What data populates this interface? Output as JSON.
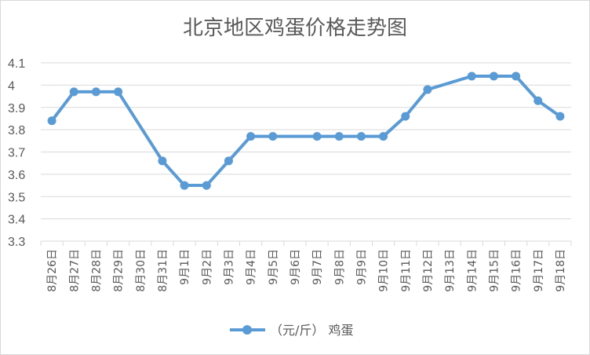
{
  "chart_data": {
    "type": "line",
    "title": "北京地区鸡蛋价格走势图",
    "xlabel": "",
    "ylabel": "",
    "categories": [
      "8月26日",
      "8月27日",
      "8月28日",
      "8月29日",
      "8月30日",
      "8月31日",
      "9月1日",
      "9月2日",
      "9月3日",
      "9月4日",
      "9月5日",
      "9月6日",
      "9月7日",
      "9月8日",
      "9月9日",
      "9月10日",
      "9月11日",
      "9月12日",
      "9月13日",
      "9月14日",
      "9月15日",
      "9月16日",
      "9月17日",
      "9月18日"
    ],
    "series": [
      {
        "name": "（元/斤） 鸡蛋",
        "values": [
          3.84,
          3.97,
          3.97,
          3.97,
          null,
          3.66,
          3.55,
          3.55,
          3.66,
          3.77,
          3.77,
          null,
          3.77,
          3.77,
          3.77,
          3.77,
          3.86,
          3.98,
          null,
          4.04,
          4.04,
          4.04,
          3.93,
          3.86
        ]
      }
    ],
    "yticks": [
      "3.3",
      "3.4",
      "3.5",
      "3.6",
      "3.7",
      "3.8",
      "3.9",
      "4",
      "4.1"
    ],
    "ylim": [
      3.3,
      4.1
    ],
    "grid": true,
    "legend_position": "bottom",
    "colors": {
      "line": "#5b9bd5",
      "grid": "#d9d9d9",
      "text": "#595959"
    }
  }
}
